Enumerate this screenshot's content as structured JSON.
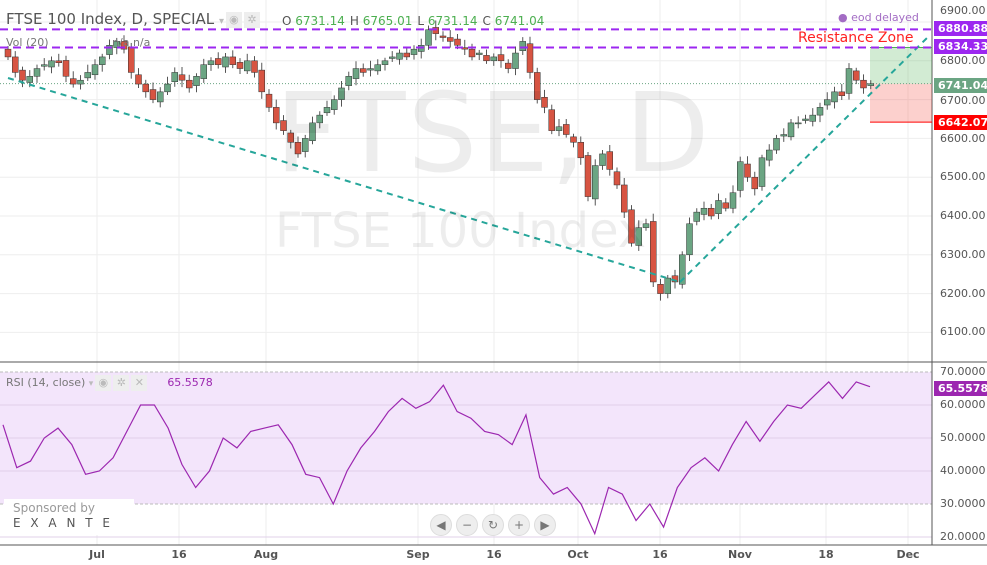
{
  "header": {
    "title": "FTSE 100 Index, D, SPECIAL",
    "o_label": "O",
    "o": "6731.14",
    "h_label": "H",
    "h": "6765.01",
    "l_label": "L",
    "l": "6731.14",
    "c_label": "C",
    "c": "6741.04",
    "vol": "Vol (20)",
    "vol_vals": "n/a  n/a",
    "eod": "eod delayed"
  },
  "watermark": {
    "big": "FTSE, D",
    "small": "FTSE 100 Index"
  },
  "annotations": {
    "resistance": "Resistance Zone"
  },
  "price_tags": {
    "r1": "6880.88",
    "r2": "6834.33",
    "last": "6741.04",
    "stop": "6642.07"
  },
  "price_axis": [
    "6900.00",
    "6800.00",
    "6700.00",
    "6600.00",
    "6500.00",
    "6400.00",
    "6300.00",
    "6200.00",
    "6100.00"
  ],
  "rsi_axis": [
    "70.0000",
    "60.0000",
    "50.0000",
    "40.0000",
    "30.0000",
    "20.0000"
  ],
  "time_axis": [
    "Jul",
    "16",
    "Aug",
    "Sep",
    "16",
    "Oct",
    "16",
    "Nov",
    "18",
    "Dec"
  ],
  "rsi_header": {
    "label": "RSI (14, close)",
    "value": "65.5578"
  },
  "sponsor": {
    "line1": "Sponsored by",
    "line2": "E X A N T E"
  },
  "colors": {
    "up": "#6ba583",
    "down": "#d75442",
    "resistance": "#9c27f0",
    "trend": "#26a69a",
    "rsi": "#9c27b0",
    "rsi_bg": "#f3e5fb"
  },
  "chart_data": {
    "type": "candlestick",
    "closes": [
      6810,
      6770,
      6750,
      6760,
      6780,
      6790,
      6800,
      6795,
      6760,
      6740,
      6750,
      6770,
      6790,
      6810,
      6840,
      6850,
      6830,
      6770,
      6740,
      6720,
      6700,
      6720,
      6740,
      6770,
      6750,
      6730,
      6760,
      6790,
      6800,
      6790,
      6810,
      6790,
      6780,
      6800,
      6770,
      6720,
      6680,
      6640,
      6620,
      6590,
      6560,
      6600,
      6640,
      6660,
      6680,
      6700,
      6730,
      6760,
      6780,
      6770,
      6780,
      6790,
      6800,
      6810,
      6820,
      6810,
      6830,
      6840,
      6880,
      6870,
      6860,
      6850,
      6840,
      6830,
      6810,
      6820,
      6800,
      6810,
      6800,
      6780,
      6820,
      6850,
      6770,
      6700,
      6680,
      6620,
      6630,
      6610,
      6590,
      6550,
      6450,
      6530,
      6560,
      6520,
      6480,
      6410,
      6330,
      6370,
      6380,
      6230,
      6200,
      6240,
      6230,
      6300,
      6380,
      6410,
      6420,
      6400,
      6440,
      6420,
      6460,
      6540,
      6500,
      6470,
      6550,
      6570,
      6600,
      6610,
      6640,
      6640,
      6650,
      6660,
      6680,
      6700,
      6720,
      6710,
      6780,
      6750,
      6730,
      6741.04
    ],
    "rsi": [
      54,
      41,
      43,
      50,
      53,
      48,
      39,
      40,
      44,
      52,
      60,
      60,
      53,
      42,
      35,
      40,
      50,
      47,
      52,
      53,
      54,
      48,
      39,
      38,
      30,
      40,
      47,
      52,
      58,
      62,
      59,
      61,
      66,
      58,
      56,
      52,
      51,
      48,
      57,
      38,
      33,
      35,
      30,
      21,
      35,
      33,
      25,
      30,
      23,
      35,
      41,
      44,
      40,
      48,
      55,
      49,
      55,
      60,
      59,
      63,
      67,
      62,
      67,
      65.56
    ],
    "resistance": [
      6880.88,
      6834.33
    ],
    "target": 6834.33,
    "stop": 6642.07,
    "entry": 6741.04
  }
}
